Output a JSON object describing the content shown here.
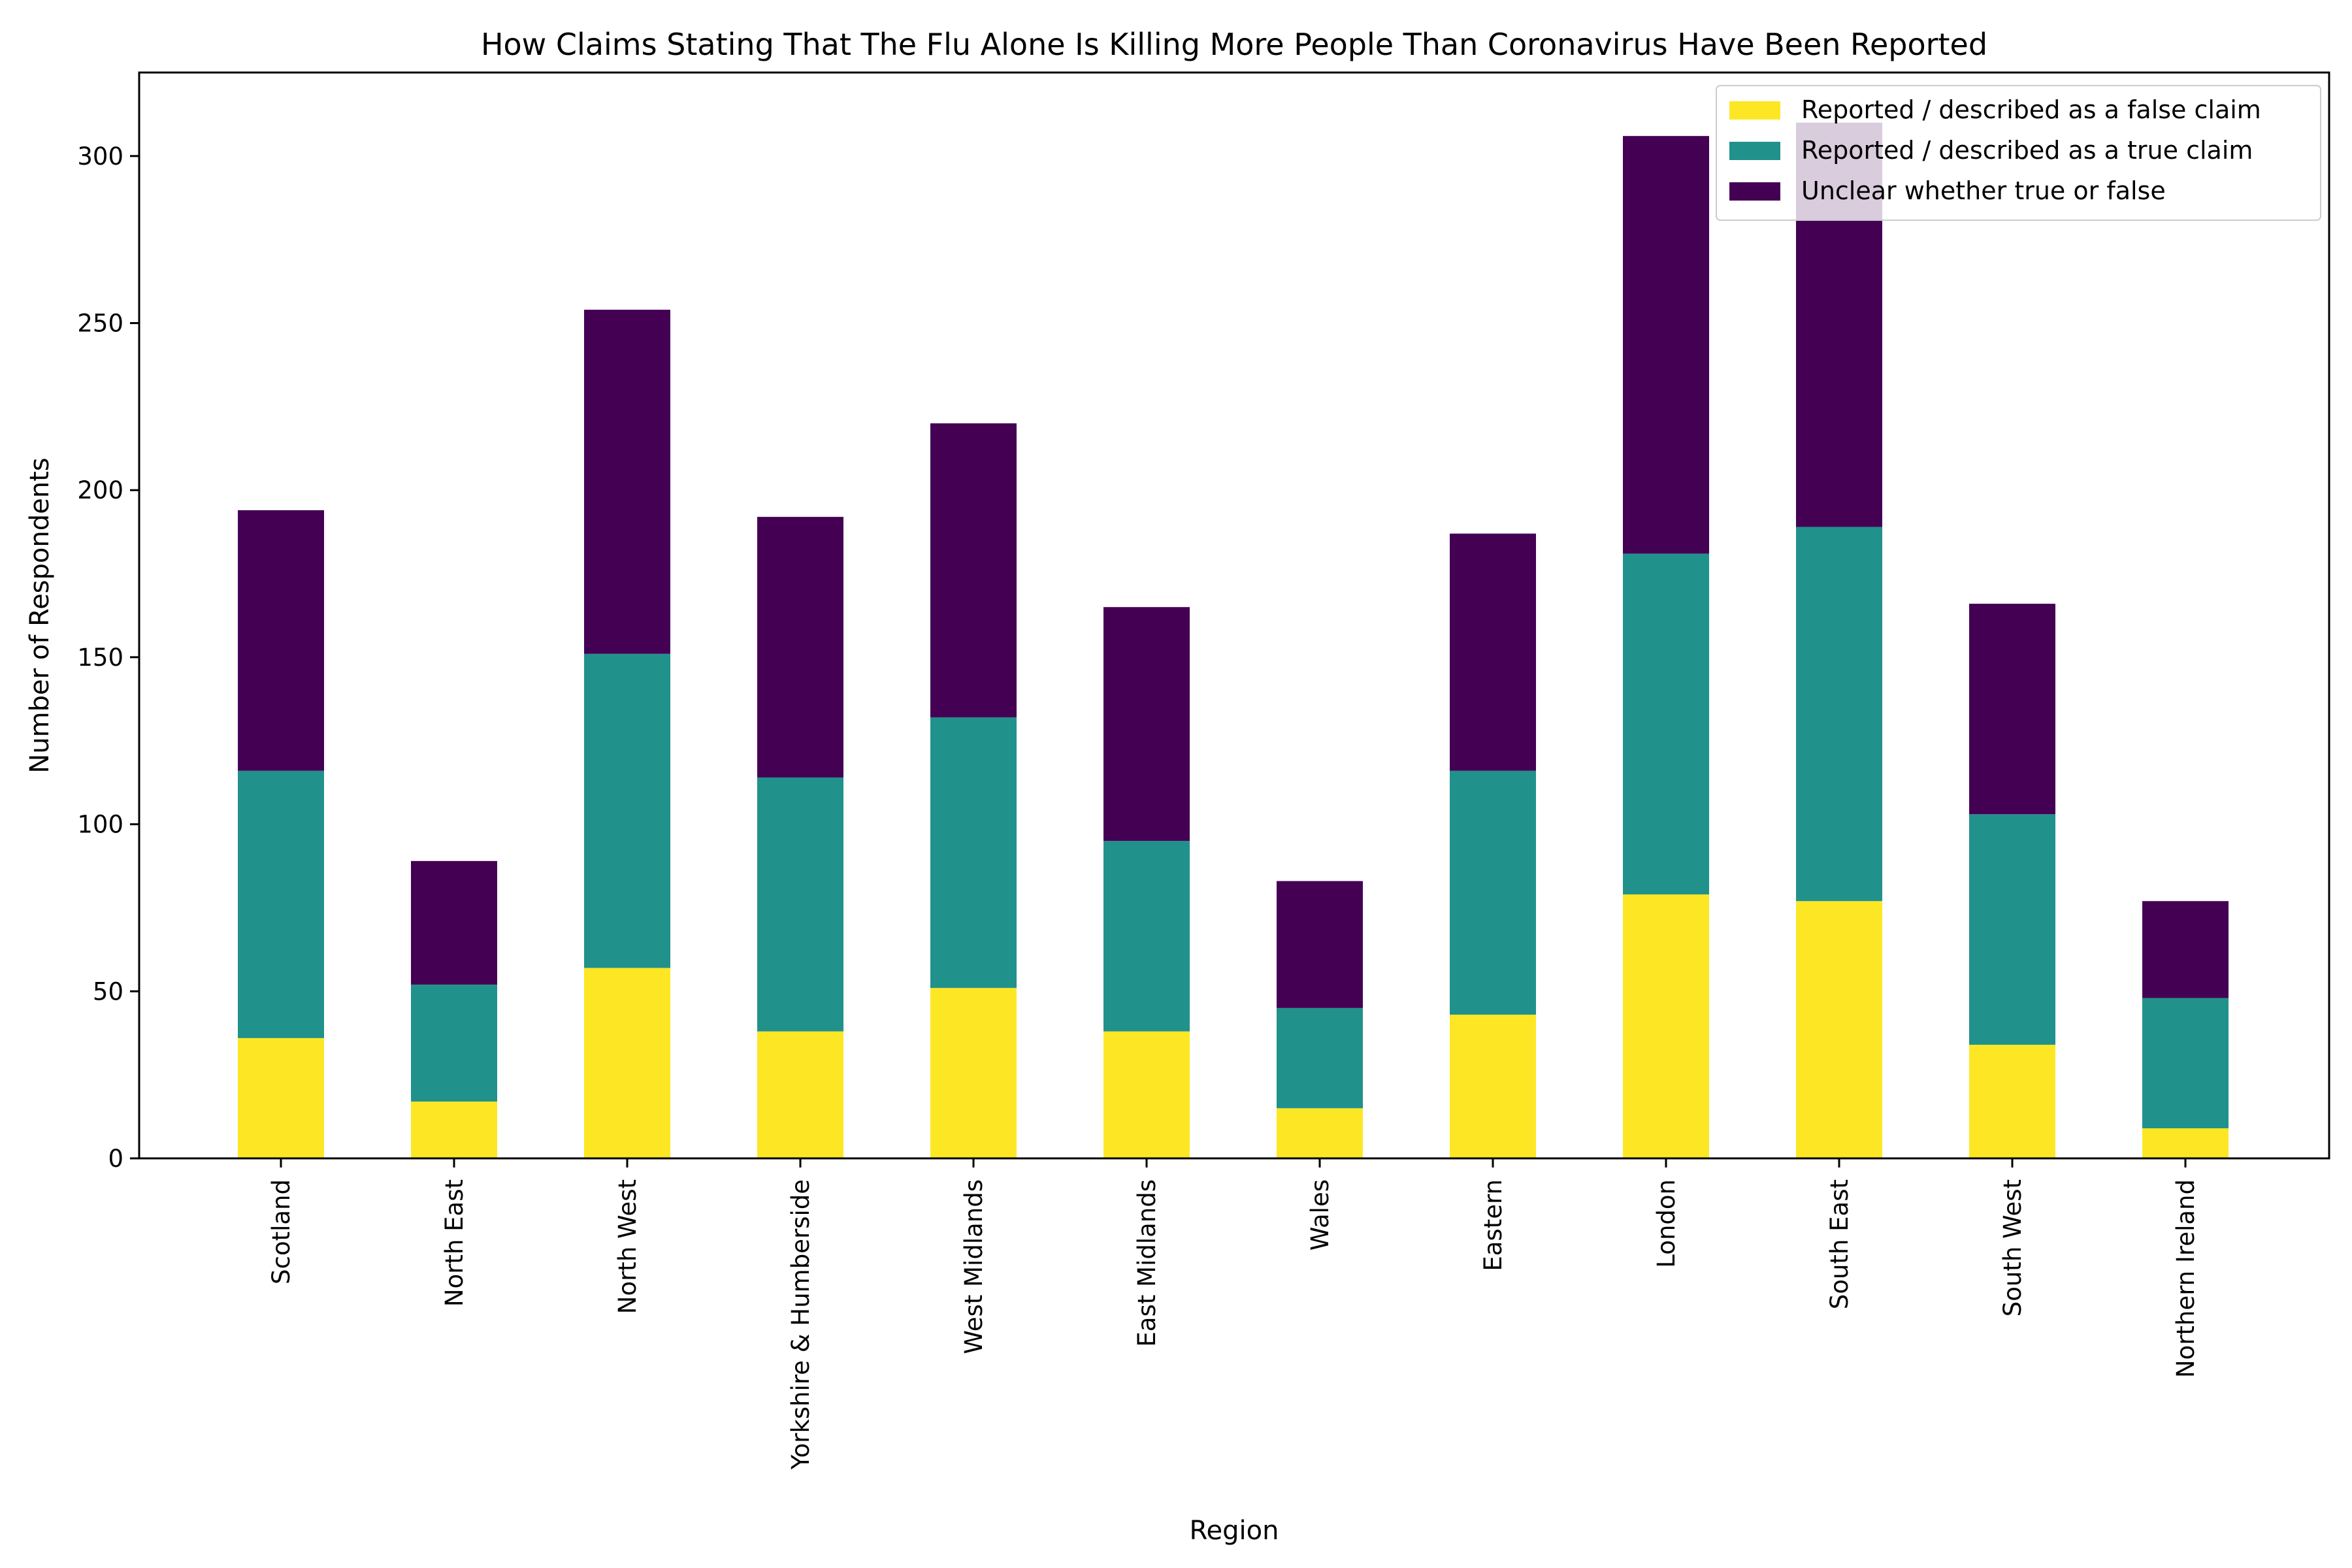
{
  "chart_data": {
    "type": "bar",
    "stacked": true,
    "title": "How Claims Stating That The Flu Alone Is Killing More People Than Coronavirus Have Been Reported",
    "xlabel": "Region",
    "ylabel": "Number of Respondents",
    "ylim": [
      0,
      325
    ],
    "yticks": [
      0,
      50,
      100,
      150,
      200,
      250,
      300
    ],
    "grid": false,
    "legend_position": "top-right",
    "categories": [
      "Scotland",
      "North East",
      "North West",
      "Yorkshire & Humberside",
      "West Midlands",
      "East Midlands",
      "Wales",
      "Eastern",
      "London",
      "South East",
      "South West",
      "Northern Ireland"
    ],
    "series": [
      {
        "name": "Reported / described as a false claim",
        "color": "#fde725",
        "values": [
          36,
          17,
          57,
          38,
          51,
          38,
          15,
          43,
          79,
          77,
          34,
          9
        ]
      },
      {
        "name": "Reported / described as a true claim",
        "color": "#21918c",
        "values": [
          80,
          35,
          94,
          76,
          81,
          57,
          30,
          73,
          102,
          112,
          69,
          39
        ]
      },
      {
        "name": "Unclear whether true or false",
        "color": "#440154",
        "values": [
          78,
          37,
          103,
          78,
          88,
          70,
          38,
          71,
          125,
          121,
          63,
          29
        ]
      }
    ]
  }
}
